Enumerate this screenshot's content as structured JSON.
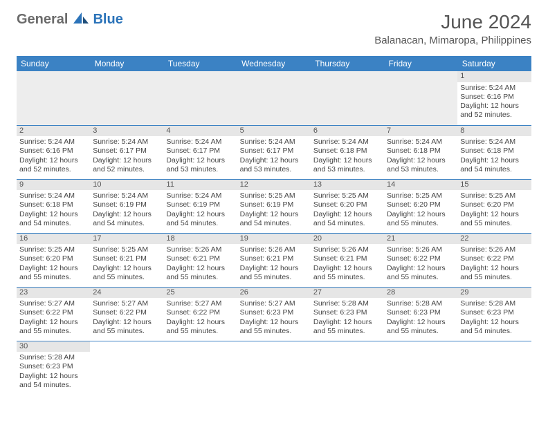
{
  "logo": {
    "gray": "General",
    "blue": "Blue"
  },
  "title": "June 2024",
  "location": "Balanacan, Mimaropa, Philippines",
  "theme": {
    "header_bg": "#3b82c4",
    "header_fg": "#ffffff",
    "daynum_bg": "#e6e6e6",
    "border": "#3b82c4",
    "title_color": "#555555",
    "text_color": "#444444",
    "title_fontsize": 28,
    "location_fontsize": 15,
    "th_fontsize": 12,
    "cell_fontsize": 10.5
  },
  "day_headers": [
    "Sunday",
    "Monday",
    "Tuesday",
    "Wednesday",
    "Thursday",
    "Friday",
    "Saturday"
  ],
  "weeks": [
    [
      {
        "empty": true
      },
      {
        "empty": true
      },
      {
        "empty": true
      },
      {
        "empty": true
      },
      {
        "empty": true
      },
      {
        "empty": true
      },
      {
        "num": "1",
        "sunrise": "Sunrise: 5:24 AM",
        "sunset": "Sunset: 6:16 PM",
        "dl1": "Daylight: 12 hours",
        "dl2": "and 52 minutes."
      }
    ],
    [
      {
        "num": "2",
        "sunrise": "Sunrise: 5:24 AM",
        "sunset": "Sunset: 6:16 PM",
        "dl1": "Daylight: 12 hours",
        "dl2": "and 52 minutes."
      },
      {
        "num": "3",
        "sunrise": "Sunrise: 5:24 AM",
        "sunset": "Sunset: 6:17 PM",
        "dl1": "Daylight: 12 hours",
        "dl2": "and 52 minutes."
      },
      {
        "num": "4",
        "sunrise": "Sunrise: 5:24 AM",
        "sunset": "Sunset: 6:17 PM",
        "dl1": "Daylight: 12 hours",
        "dl2": "and 53 minutes."
      },
      {
        "num": "5",
        "sunrise": "Sunrise: 5:24 AM",
        "sunset": "Sunset: 6:17 PM",
        "dl1": "Daylight: 12 hours",
        "dl2": "and 53 minutes."
      },
      {
        "num": "6",
        "sunrise": "Sunrise: 5:24 AM",
        "sunset": "Sunset: 6:18 PM",
        "dl1": "Daylight: 12 hours",
        "dl2": "and 53 minutes."
      },
      {
        "num": "7",
        "sunrise": "Sunrise: 5:24 AM",
        "sunset": "Sunset: 6:18 PM",
        "dl1": "Daylight: 12 hours",
        "dl2": "and 53 minutes."
      },
      {
        "num": "8",
        "sunrise": "Sunrise: 5:24 AM",
        "sunset": "Sunset: 6:18 PM",
        "dl1": "Daylight: 12 hours",
        "dl2": "and 54 minutes."
      }
    ],
    [
      {
        "num": "9",
        "sunrise": "Sunrise: 5:24 AM",
        "sunset": "Sunset: 6:18 PM",
        "dl1": "Daylight: 12 hours",
        "dl2": "and 54 minutes."
      },
      {
        "num": "10",
        "sunrise": "Sunrise: 5:24 AM",
        "sunset": "Sunset: 6:19 PM",
        "dl1": "Daylight: 12 hours",
        "dl2": "and 54 minutes."
      },
      {
        "num": "11",
        "sunrise": "Sunrise: 5:24 AM",
        "sunset": "Sunset: 6:19 PM",
        "dl1": "Daylight: 12 hours",
        "dl2": "and 54 minutes."
      },
      {
        "num": "12",
        "sunrise": "Sunrise: 5:25 AM",
        "sunset": "Sunset: 6:19 PM",
        "dl1": "Daylight: 12 hours",
        "dl2": "and 54 minutes."
      },
      {
        "num": "13",
        "sunrise": "Sunrise: 5:25 AM",
        "sunset": "Sunset: 6:20 PM",
        "dl1": "Daylight: 12 hours",
        "dl2": "and 54 minutes."
      },
      {
        "num": "14",
        "sunrise": "Sunrise: 5:25 AM",
        "sunset": "Sunset: 6:20 PM",
        "dl1": "Daylight: 12 hours",
        "dl2": "and 55 minutes."
      },
      {
        "num": "15",
        "sunrise": "Sunrise: 5:25 AM",
        "sunset": "Sunset: 6:20 PM",
        "dl1": "Daylight: 12 hours",
        "dl2": "and 55 minutes."
      }
    ],
    [
      {
        "num": "16",
        "sunrise": "Sunrise: 5:25 AM",
        "sunset": "Sunset: 6:20 PM",
        "dl1": "Daylight: 12 hours",
        "dl2": "and 55 minutes."
      },
      {
        "num": "17",
        "sunrise": "Sunrise: 5:25 AM",
        "sunset": "Sunset: 6:21 PM",
        "dl1": "Daylight: 12 hours",
        "dl2": "and 55 minutes."
      },
      {
        "num": "18",
        "sunrise": "Sunrise: 5:26 AM",
        "sunset": "Sunset: 6:21 PM",
        "dl1": "Daylight: 12 hours",
        "dl2": "and 55 minutes."
      },
      {
        "num": "19",
        "sunrise": "Sunrise: 5:26 AM",
        "sunset": "Sunset: 6:21 PM",
        "dl1": "Daylight: 12 hours",
        "dl2": "and 55 minutes."
      },
      {
        "num": "20",
        "sunrise": "Sunrise: 5:26 AM",
        "sunset": "Sunset: 6:21 PM",
        "dl1": "Daylight: 12 hours",
        "dl2": "and 55 minutes."
      },
      {
        "num": "21",
        "sunrise": "Sunrise: 5:26 AM",
        "sunset": "Sunset: 6:22 PM",
        "dl1": "Daylight: 12 hours",
        "dl2": "and 55 minutes."
      },
      {
        "num": "22",
        "sunrise": "Sunrise: 5:26 AM",
        "sunset": "Sunset: 6:22 PM",
        "dl1": "Daylight: 12 hours",
        "dl2": "and 55 minutes."
      }
    ],
    [
      {
        "num": "23",
        "sunrise": "Sunrise: 5:27 AM",
        "sunset": "Sunset: 6:22 PM",
        "dl1": "Daylight: 12 hours",
        "dl2": "and 55 minutes."
      },
      {
        "num": "24",
        "sunrise": "Sunrise: 5:27 AM",
        "sunset": "Sunset: 6:22 PM",
        "dl1": "Daylight: 12 hours",
        "dl2": "and 55 minutes."
      },
      {
        "num": "25",
        "sunrise": "Sunrise: 5:27 AM",
        "sunset": "Sunset: 6:22 PM",
        "dl1": "Daylight: 12 hours",
        "dl2": "and 55 minutes."
      },
      {
        "num": "26",
        "sunrise": "Sunrise: 5:27 AM",
        "sunset": "Sunset: 6:23 PM",
        "dl1": "Daylight: 12 hours",
        "dl2": "and 55 minutes."
      },
      {
        "num": "27",
        "sunrise": "Sunrise: 5:28 AM",
        "sunset": "Sunset: 6:23 PM",
        "dl1": "Daylight: 12 hours",
        "dl2": "and 55 minutes."
      },
      {
        "num": "28",
        "sunrise": "Sunrise: 5:28 AM",
        "sunset": "Sunset: 6:23 PM",
        "dl1": "Daylight: 12 hours",
        "dl2": "and 55 minutes."
      },
      {
        "num": "29",
        "sunrise": "Sunrise: 5:28 AM",
        "sunset": "Sunset: 6:23 PM",
        "dl1": "Daylight: 12 hours",
        "dl2": "and 54 minutes."
      }
    ],
    [
      {
        "num": "30",
        "sunrise": "Sunrise: 5:28 AM",
        "sunset": "Sunset: 6:23 PM",
        "dl1": "Daylight: 12 hours",
        "dl2": "and 54 minutes."
      },
      {
        "blank": true
      },
      {
        "blank": true
      },
      {
        "blank": true
      },
      {
        "blank": true
      },
      {
        "blank": true
      },
      {
        "blank": true
      }
    ]
  ]
}
